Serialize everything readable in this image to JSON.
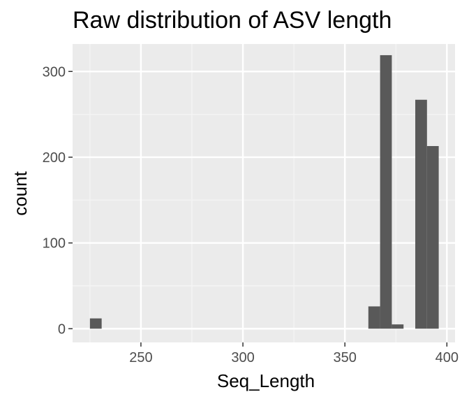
{
  "chart_data": {
    "type": "bar",
    "title": "Raw distribution of ASV length",
    "xlabel": "Seq_Length",
    "ylabel": "count",
    "xlim": [
      216.5,
      404
    ],
    "ylim": [
      -16,
      332
    ],
    "x_ticks": [
      250,
      300,
      350,
      400
    ],
    "y_ticks": [
      0,
      100,
      200,
      300
    ],
    "x_tick_labels": [
      "250",
      "300",
      "350",
      "400"
    ],
    "y_tick_labels": [
      "0",
      "100",
      "200",
      "300"
    ],
    "grid": true,
    "bins": [
      {
        "x0": 225,
        "x1": 230.75,
        "count": 12
      },
      {
        "x0": 361.5,
        "x1": 367.25,
        "count": 26
      },
      {
        "x0": 367.25,
        "x1": 373,
        "count": 319
      },
      {
        "x0": 373,
        "x1": 378.75,
        "count": 5
      },
      {
        "x0": 384.5,
        "x1": 390.25,
        "count": 267
      },
      {
        "x0": 390.25,
        "x1": 396,
        "count": 213
      }
    ],
    "colors": {
      "bar": "#595959",
      "panel": "#ebebeb",
      "grid_major": "#ffffff",
      "grid_minor": "#f5f5f5",
      "tick_label": "#4d4d4d",
      "tick": "#333333"
    }
  }
}
